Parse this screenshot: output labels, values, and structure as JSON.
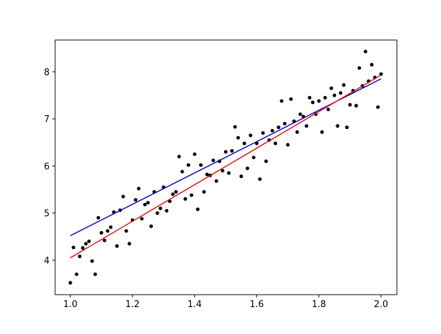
{
  "chart_data": {
    "type": "scatter",
    "color": "#000000",
    "x": [
      1.0,
      1.01,
      1.02,
      1.03,
      1.04,
      1.05,
      1.06,
      1.07,
      1.08,
      1.09,
      1.1,
      1.11,
      1.12,
      1.13,
      1.14,
      1.15,
      1.16,
      1.17,
      1.18,
      1.19,
      1.2,
      1.21,
      1.22,
      1.23,
      1.24,
      1.25,
      1.26,
      1.27,
      1.28,
      1.29,
      1.3,
      1.31,
      1.32,
      1.33,
      1.34,
      1.35,
      1.36,
      1.37,
      1.38,
      1.39,
      1.4,
      1.41,
      1.42,
      1.43,
      1.44,
      1.45,
      1.46,
      1.47,
      1.48,
      1.49,
      1.5,
      1.51,
      1.52,
      1.53,
      1.54,
      1.55,
      1.56,
      1.57,
      1.58,
      1.59,
      1.6,
      1.61,
      1.62,
      1.63,
      1.64,
      1.65,
      1.66,
      1.67,
      1.68,
      1.69,
      1.7,
      1.71,
      1.72,
      1.73,
      1.74,
      1.75,
      1.76,
      1.77,
      1.78,
      1.79,
      1.8,
      1.81,
      1.82,
      1.83,
      1.84,
      1.85,
      1.86,
      1.87,
      1.88,
      1.89,
      1.9,
      1.91,
      1.92,
      1.93,
      1.94,
      1.95,
      1.96,
      1.97,
      1.98,
      1.99,
      2.0
    ],
    "values": [
      3.52,
      4.27,
      3.7,
      4.08,
      4.26,
      4.35,
      4.4,
      3.98,
      3.7,
      4.9,
      4.58,
      4.42,
      4.62,
      4.7,
      5.02,
      4.3,
      5.06,
      5.35,
      4.62,
      4.35,
      4.85,
      5.28,
      5.52,
      4.88,
      5.18,
      5.22,
      4.72,
      5.45,
      5.0,
      5.1,
      5.55,
      5.05,
      5.25,
      5.4,
      5.45,
      6.2,
      5.88,
      5.3,
      6.02,
      5.38,
      6.25,
      5.08,
      6.02,
      5.45,
      5.82,
      5.8,
      6.12,
      5.68,
      6.1,
      5.9,
      6.3,
      5.85,
      6.32,
      6.83,
      6.6,
      5.78,
      6.48,
      5.95,
      6.65,
      6.18,
      6.48,
      5.72,
      6.7,
      6.1,
      6.55,
      6.75,
      6.48,
      6.82,
      7.38,
      6.9,
      6.45,
      7.42,
      6.95,
      6.72,
      7.1,
      7.05,
      6.85,
      7.45,
      7.35,
      7.1,
      7.38,
      6.72,
      7.45,
      7.2,
      7.65,
      7.5,
      6.85,
      7.55,
      7.72,
      6.82,
      7.3,
      7.6,
      7.28,
      8.08,
      7.7,
      8.43,
      7.8,
      8.15,
      7.88,
      7.25,
      7.95
    ],
    "lines": [
      {
        "color": "#0000cc",
        "x": [
          1.0,
          2.0
        ],
        "values": [
          4.52,
          7.85
        ]
      },
      {
        "color": "#dd1111",
        "x": [
          1.0,
          2.0
        ],
        "values": [
          4.05,
          7.93
        ]
      }
    ],
    "xlim": [
      0.951,
      2.051
    ],
    "ylim": [
      3.267,
      8.674
    ],
    "xticks": [
      {
        "value": 1.0,
        "label": "1.0"
      },
      1.2,
      1.4,
      1.6,
      1.8,
      {
        "value": 2.0,
        "label": "2.0"
      }
    ],
    "yticks": [
      4,
      5,
      6,
      7,
      8
    ],
    "grid": false
  }
}
